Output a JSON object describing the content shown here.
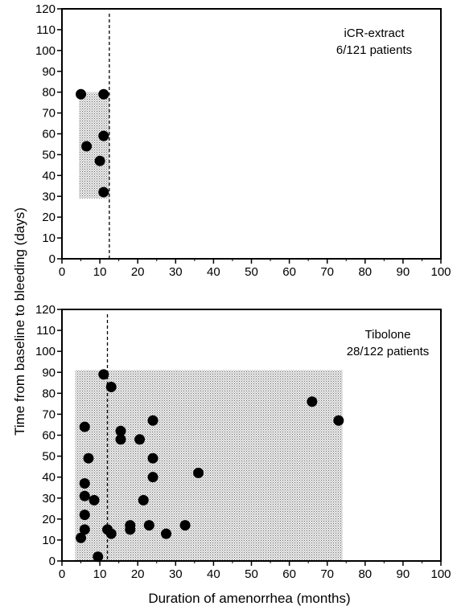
{
  "figure": {
    "ylabel": "Time from baseline to bleeding (days)",
    "xlabel": "Duration of amenorrhea (months)"
  },
  "chart_data": [
    {
      "type": "scatter",
      "annotation_lines": [
        "iCR-extract",
        "6/121 patients"
      ],
      "xlim": [
        0,
        100
      ],
      "ylim": [
        0,
        120
      ],
      "x_ticks": [
        0,
        10,
        20,
        30,
        40,
        50,
        60,
        70,
        80,
        90,
        100
      ],
      "y_ticks": [
        0,
        10,
        20,
        30,
        40,
        50,
        60,
        70,
        80,
        90,
        100,
        110,
        120
      ],
      "grid": false,
      "vline_x": 12.5,
      "shaded_region": {
        "x": [
          4.5,
          12.5
        ],
        "y": [
          29,
          80
        ]
      },
      "points": [
        {
          "x": 5,
          "y": 79
        },
        {
          "x": 11,
          "y": 79
        },
        {
          "x": 11,
          "y": 59
        },
        {
          "x": 6.5,
          "y": 54
        },
        {
          "x": 10,
          "y": 47
        },
        {
          "x": 11,
          "y": 32
        }
      ]
    },
    {
      "type": "scatter",
      "annotation_lines": [
        "Tibolone",
        "28/122 patients"
      ],
      "xlim": [
        0,
        100
      ],
      "ylim": [
        0,
        120
      ],
      "x_ticks": [
        0,
        10,
        20,
        30,
        40,
        50,
        60,
        70,
        80,
        90,
        100
      ],
      "y_ticks": [
        0,
        10,
        20,
        30,
        40,
        50,
        60,
        70,
        80,
        90,
        100,
        110,
        120
      ],
      "grid": false,
      "vline_x": 12,
      "shaded_region": {
        "x": [
          3.5,
          74
        ],
        "y": [
          0,
          91
        ]
      },
      "points": [
        {
          "x": 11,
          "y": 89
        },
        {
          "x": 13,
          "y": 83
        },
        {
          "x": 6,
          "y": 64
        },
        {
          "x": 15.5,
          "y": 62
        },
        {
          "x": 15.5,
          "y": 58
        },
        {
          "x": 20.5,
          "y": 58
        },
        {
          "x": 24,
          "y": 67
        },
        {
          "x": 24,
          "y": 49
        },
        {
          "x": 7,
          "y": 49
        },
        {
          "x": 24,
          "y": 40
        },
        {
          "x": 36,
          "y": 42
        },
        {
          "x": 6,
          "y": 37
        },
        {
          "x": 6,
          "y": 31
        },
        {
          "x": 8.5,
          "y": 29
        },
        {
          "x": 21.5,
          "y": 29
        },
        {
          "x": 6,
          "y": 22
        },
        {
          "x": 6,
          "y": 15
        },
        {
          "x": 5,
          "y": 11
        },
        {
          "x": 12,
          "y": 15
        },
        {
          "x": 13,
          "y": 13
        },
        {
          "x": 18,
          "y": 17
        },
        {
          "x": 18,
          "y": 15
        },
        {
          "x": 23,
          "y": 17
        },
        {
          "x": 27.5,
          "y": 13
        },
        {
          "x": 32.5,
          "y": 17
        },
        {
          "x": 9.5,
          "y": 2
        },
        {
          "x": 66,
          "y": 76
        },
        {
          "x": 73,
          "y": 67
        }
      ]
    }
  ]
}
